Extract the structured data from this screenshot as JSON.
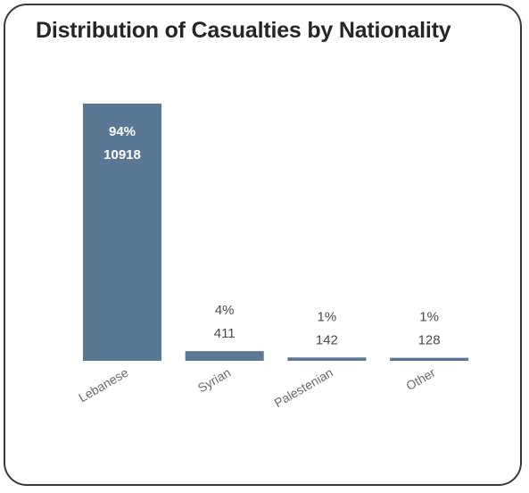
{
  "chart_data": {
    "type": "bar",
    "title": "Distribution of Casualties by Nationality",
    "categories": [
      "Lebanese",
      "Syrian",
      "Palestenian",
      "Other"
    ],
    "values": [
      10918,
      411,
      142,
      128
    ],
    "percent_labels": [
      "94%",
      "4%",
      "1%",
      "1%"
    ],
    "xlabel": "",
    "ylabel": "",
    "ylim": [
      0,
      10918
    ],
    "grid": false,
    "legend": "none",
    "bar_color": "#5a7894",
    "label_color_inside": "#ffffff",
    "label_color_outside": "#4a4a4a",
    "tick_label_color": "#6a6a6a"
  }
}
